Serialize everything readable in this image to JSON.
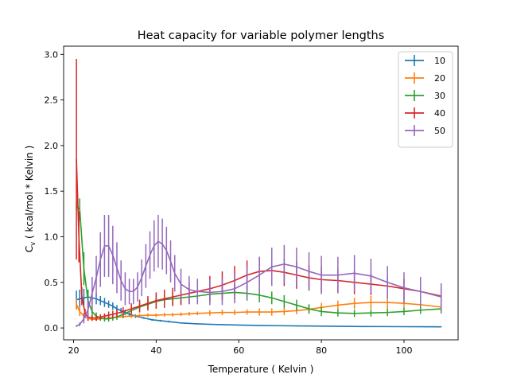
{
  "chart_data": {
    "type": "line",
    "title": "Heat capacity for variable polymer lengths",
    "xlabel": "Temperature ( Kelvin )",
    "ylabel_main": "C",
    "ylabel_sub": "v",
    "ylabel_rest": " ( kcal/mol * Kelvin )",
    "xlim": [
      17.6,
      113.1
    ],
    "ylim": [
      -0.13,
      3.09
    ],
    "xticks": [
      20,
      40,
      60,
      80,
      100
    ],
    "yticks": [
      0.0,
      0.5,
      1.0,
      1.5,
      2.0,
      2.5,
      3.0
    ],
    "xtick_labels": [
      "20",
      "40",
      "60",
      "80",
      "100"
    ],
    "ytick_labels": [
      "0.0",
      "0.5",
      "1.0",
      "1.5",
      "2.0",
      "2.5",
      "3.0"
    ],
    "legend_position": "top-right",
    "grid": false,
    "series": [
      {
        "name": "10",
        "color": "#1f77b4",
        "x": [
          20.7,
          21.5,
          22.5,
          23.5,
          24.5,
          25.5,
          26.5,
          27.5,
          28.5,
          29.5,
          30.5,
          31.5,
          32.5,
          33.5,
          35.0,
          37.0,
          39.0,
          41.0,
          43.0,
          46.0,
          50.0,
          55.0,
          60.0,
          65.0,
          70.0,
          75.0,
          80.0,
          85.0,
          90.0,
          95.0,
          100.0,
          105.0,
          109.0
        ],
        "y": [
          0.31,
          0.32,
          0.33,
          0.34,
          0.33,
          0.32,
          0.3,
          0.28,
          0.26,
          0.24,
          0.21,
          0.19,
          0.17,
          0.15,
          0.13,
          0.11,
          0.09,
          0.08,
          0.07,
          0.055,
          0.045,
          0.037,
          0.032,
          0.028,
          0.025,
          0.022,
          0.02,
          0.018,
          0.016,
          0.015,
          0.014,
          0.013,
          0.012
        ],
        "err": [
          0.1,
          0.1,
          0.1,
          0.08,
          0.07,
          0.06,
          0.05,
          0.05,
          0.04,
          0.04,
          0.04,
          0.03,
          0.03,
          0.02,
          0.02,
          0.01,
          0.01,
          0.01,
          0.01,
          0.005,
          0.005,
          0.005,
          0.005,
          0.005,
          0.005,
          0.005,
          0.005,
          0.005,
          0.005,
          0.005,
          0.005,
          0.005,
          0.005
        ]
      },
      {
        "name": "20",
        "color": "#ff7f0e",
        "x": [
          20.7,
          21.5,
          22.5,
          23.5,
          24.5,
          25.5,
          26.5,
          27.5,
          28.5,
          29.5,
          30.5,
          32.0,
          34.0,
          36.0,
          38.0,
          40.0,
          42.0,
          44.0,
          46.0,
          48.0,
          50.0,
          53.0,
          56.0,
          59.0,
          62.0,
          65.0,
          68.0,
          71.0,
          74.0,
          77.0,
          80.0,
          84.0,
          88.0,
          92.0,
          96.0,
          100.0,
          104.0,
          109.0
        ],
        "y": [
          0.26,
          0.18,
          0.13,
          0.105,
          0.095,
          0.095,
          0.1,
          0.105,
          0.11,
          0.115,
          0.12,
          0.125,
          0.13,
          0.135,
          0.14,
          0.14,
          0.145,
          0.145,
          0.15,
          0.155,
          0.16,
          0.165,
          0.17,
          0.17,
          0.175,
          0.175,
          0.175,
          0.18,
          0.19,
          0.205,
          0.225,
          0.25,
          0.27,
          0.28,
          0.28,
          0.27,
          0.255,
          0.23
        ],
        "err": [
          0.06,
          0.05,
          0.04,
          0.03,
          0.02,
          0.02,
          0.02,
          0.02,
          0.02,
          0.02,
          0.02,
          0.02,
          0.02,
          0.02,
          0.02,
          0.02,
          0.02,
          0.02,
          0.02,
          0.02,
          0.02,
          0.03,
          0.03,
          0.03,
          0.03,
          0.04,
          0.04,
          0.04,
          0.04,
          0.05,
          0.05,
          0.05,
          0.06,
          0.07,
          0.07,
          0.06,
          0.05,
          0.05
        ]
      },
      {
        "name": "30",
        "color": "#2ca02c",
        "x": [
          20.7,
          21.5,
          22.5,
          23.5,
          24.5,
          25.5,
          26.5,
          27.5,
          28.5,
          29.5,
          30.5,
          32.0,
          34.0,
          36.0,
          38.0,
          40.0,
          42.0,
          44.0,
          46.0,
          48.0,
          50.0,
          53.0,
          56.0,
          59.0,
          62.0,
          65.0,
          68.0,
          71.0,
          74.0,
          77.0,
          80.0,
          84.0,
          88.0,
          92.0,
          96.0,
          100.0,
          104.0,
          109.0
        ],
        "y": [
          1.34,
          1.3,
          0.65,
          0.3,
          0.18,
          0.13,
          0.11,
          0.1,
          0.1,
          0.11,
          0.12,
          0.15,
          0.19,
          0.23,
          0.26,
          0.29,
          0.31,
          0.32,
          0.33,
          0.34,
          0.35,
          0.37,
          0.38,
          0.39,
          0.38,
          0.36,
          0.33,
          0.29,
          0.25,
          0.21,
          0.18,
          0.165,
          0.16,
          0.165,
          0.17,
          0.18,
          0.195,
          0.21
        ],
        "err": [
          0.05,
          0.12,
          0.18,
          0.12,
          0.06,
          0.04,
          0.03,
          0.03,
          0.03,
          0.03,
          0.03,
          0.04,
          0.05,
          0.05,
          0.06,
          0.07,
          0.07,
          0.07,
          0.07,
          0.07,
          0.08,
          0.08,
          0.08,
          0.08,
          0.08,
          0.08,
          0.07,
          0.07,
          0.06,
          0.05,
          0.05,
          0.04,
          0.04,
          0.04,
          0.04,
          0.04,
          0.04,
          0.05
        ]
      },
      {
        "name": "40",
        "color": "#d62728",
        "x": [
          20.7,
          21.3,
          22.0,
          22.8,
          23.5,
          24.5,
          25.5,
          26.5,
          27.5,
          28.5,
          29.5,
          30.5,
          32.0,
          34.0,
          36.0,
          38.0,
          40.0,
          42.0,
          44.0,
          46.0,
          48.0,
          50.0,
          53.0,
          56.0,
          59.0,
          62.0,
          65.0,
          68.0,
          71.0,
          74.0,
          77.0,
          80.0,
          84.0,
          88.0,
          92.0,
          96.0,
          100.0,
          104.0,
          109.0
        ],
        "y": [
          1.85,
          1.0,
          0.35,
          0.16,
          0.12,
          0.11,
          0.11,
          0.12,
          0.13,
          0.14,
          0.15,
          0.16,
          0.18,
          0.21,
          0.24,
          0.27,
          0.3,
          0.32,
          0.34,
          0.36,
          0.38,
          0.4,
          0.43,
          0.47,
          0.52,
          0.58,
          0.62,
          0.63,
          0.61,
          0.58,
          0.55,
          0.53,
          0.52,
          0.5,
          0.48,
          0.46,
          0.43,
          0.4,
          0.35
        ],
        "err": [
          1.1,
          0.28,
          0.1,
          0.05,
          0.04,
          0.03,
          0.03,
          0.03,
          0.03,
          0.04,
          0.04,
          0.04,
          0.05,
          0.06,
          0.07,
          0.08,
          0.09,
          0.1,
          0.1,
          0.11,
          0.12,
          0.13,
          0.14,
          0.15,
          0.16,
          0.16,
          0.16,
          0.16,
          0.15,
          0.15,
          0.14,
          0.14,
          0.13,
          0.13,
          0.12,
          0.12,
          0.11,
          0.11,
          0.1
        ]
      },
      {
        "name": "50",
        "color": "#9467bd",
        "x": [
          20.7,
          21.5,
          22.5,
          23.5,
          24.5,
          25.5,
          26.5,
          27.5,
          28.5,
          29.5,
          30.5,
          31.5,
          32.5,
          33.5,
          34.5,
          35.5,
          36.5,
          37.5,
          38.5,
          39.5,
          40.5,
          41.5,
          42.5,
          43.5,
          44.5,
          46.0,
          48.0,
          50.0,
          53.0,
          56.0,
          59.0,
          62.0,
          65.0,
          68.0,
          71.0,
          74.0,
          77.0,
          80.0,
          84.0,
          88.0,
          92.0,
          96.0,
          100.0,
          104.0,
          109.0
        ],
        "y": [
          0.02,
          0.04,
          0.1,
          0.2,
          0.38,
          0.55,
          0.75,
          0.9,
          0.9,
          0.8,
          0.66,
          0.52,
          0.43,
          0.4,
          0.4,
          0.45,
          0.55,
          0.68,
          0.8,
          0.9,
          0.95,
          0.92,
          0.85,
          0.73,
          0.6,
          0.48,
          0.42,
          0.4,
          0.39,
          0.4,
          0.43,
          0.5,
          0.58,
          0.67,
          0.7,
          0.67,
          0.62,
          0.58,
          0.58,
          0.6,
          0.57,
          0.5,
          0.44,
          0.4,
          0.34
        ],
        "err": [
          0.01,
          0.02,
          0.05,
          0.1,
          0.18,
          0.24,
          0.3,
          0.34,
          0.34,
          0.32,
          0.28,
          0.22,
          0.18,
          0.14,
          0.14,
          0.16,
          0.2,
          0.24,
          0.26,
          0.28,
          0.29,
          0.28,
          0.26,
          0.23,
          0.2,
          0.17,
          0.15,
          0.14,
          0.14,
          0.15,
          0.16,
          0.18,
          0.2,
          0.21,
          0.21,
          0.21,
          0.21,
          0.21,
          0.2,
          0.2,
          0.19,
          0.18,
          0.17,
          0.16,
          0.15
        ]
      }
    ]
  }
}
